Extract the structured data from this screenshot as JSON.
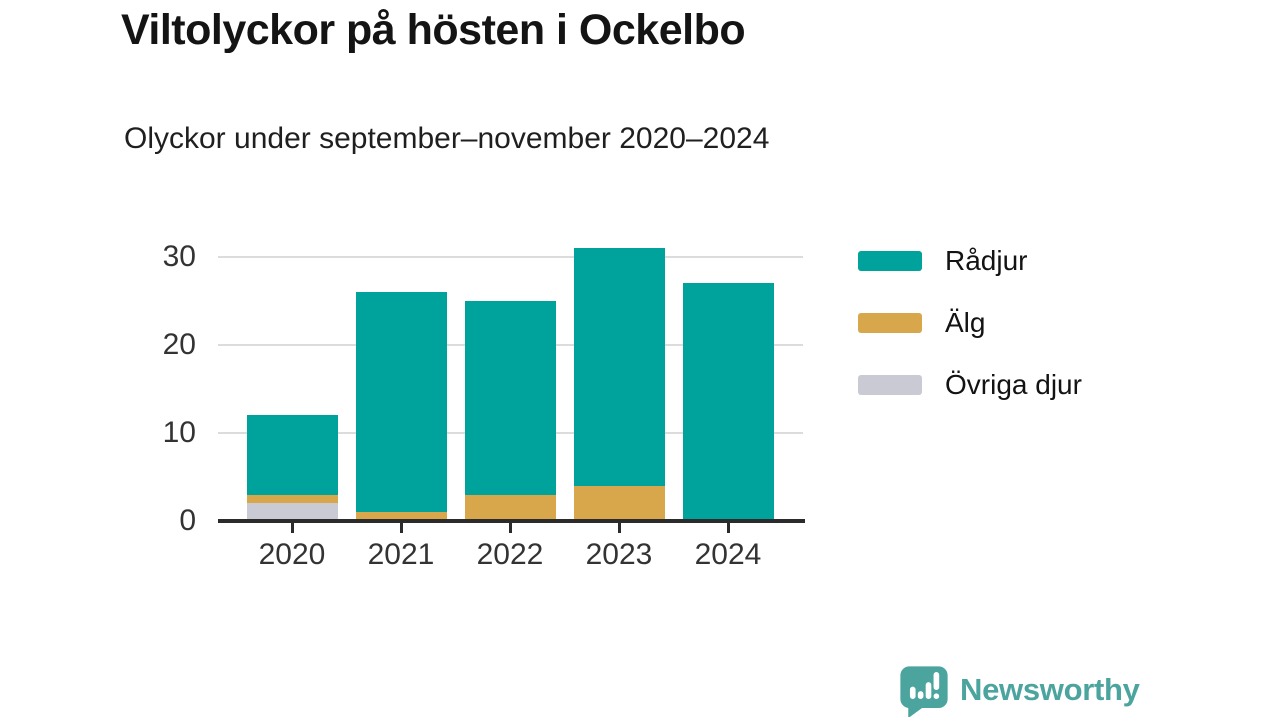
{
  "page": {
    "title": "Viltolyckor på hösten i Ockelbo",
    "subtitle": "Olyckor under september–november 2020–2024"
  },
  "chart_data": {
    "type": "bar",
    "stacked": true,
    "title": "Viltolyckor på hösten i Ockelbo",
    "subtitle": "Olyckor under september–november 2020–2024",
    "categories": [
      "2020",
      "2021",
      "2022",
      "2023",
      "2024"
    ],
    "series": [
      {
        "name": "Rådjur",
        "color": "#00A39B",
        "values": [
          9,
          25,
          22,
          27,
          27
        ]
      },
      {
        "name": "Älg",
        "color": "#D8A74C",
        "values": [
          1,
          1,
          3,
          4,
          0
        ]
      },
      {
        "name": "Övriga djur",
        "color": "#CACAD4",
        "values": [
          2,
          0,
          0,
          0,
          0
        ]
      }
    ],
    "stack_order_bottom_to_top": [
      "Övriga djur",
      "Älg",
      "Rådjur"
    ],
    "xlabel": "",
    "ylabel": "",
    "ylim": [
      0,
      32
    ],
    "yticks": [
      0,
      10,
      20,
      30
    ],
    "grid": true,
    "legend_position": "right"
  },
  "legend": {
    "items": [
      {
        "label": "Rådjur",
        "color": "#00A39B"
      },
      {
        "label": "Älg",
        "color": "#D8A74C"
      },
      {
        "label": "Övriga djur",
        "color": "#CACAD4"
      }
    ]
  },
  "footer": {
    "brand": "Newsworthy",
    "brand_color": "#4BA49E",
    "icon": "newsworthy-bubble-chart-icon"
  },
  "colors": {
    "axis": "#2B2B2B",
    "grid": "#DCDCDC",
    "axis_text": "#333333",
    "title_text": "#141414",
    "background": "#FFFFFF"
  }
}
